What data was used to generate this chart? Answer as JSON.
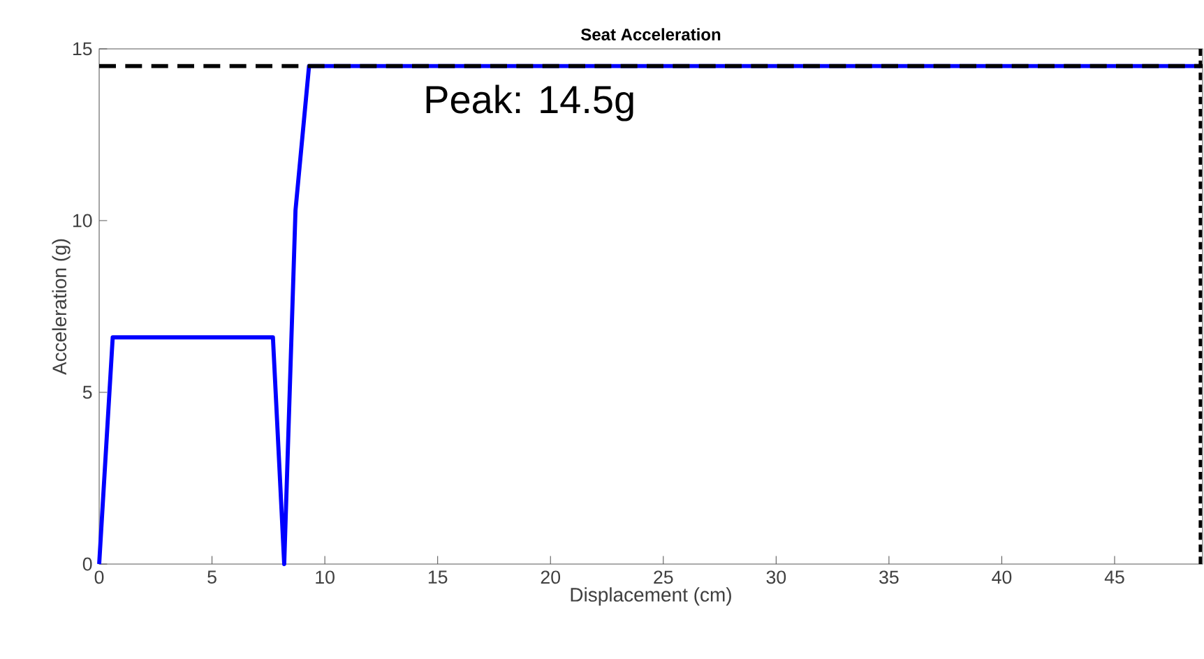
{
  "chart_data": {
    "type": "line",
    "title": "Seat Acceleration",
    "xlabel": "Displacement (cm)",
    "ylabel": "Acceleration (g)",
    "x": [
      0,
      0.6,
      7.7,
      8.2,
      8.7,
      9.3,
      48.8
    ],
    "series": [
      {
        "color": "#0000ff",
        "values": [
          0,
          6.6,
          6.6,
          0,
          10.3,
          14.5,
          14.5
        ]
      }
    ],
    "xlim": [
      0,
      48.9
    ],
    "ylim": [
      0,
      15
    ],
    "xticks": [
      0,
      5,
      10,
      15,
      20,
      25,
      30,
      35,
      40,
      45
    ],
    "yticks": [
      0,
      5,
      10,
      15
    ],
    "ref_lines": [
      {
        "axis": "y",
        "value": 14.5,
        "color": "#000000",
        "line_style": "dashed"
      },
      {
        "axis": "x",
        "value": 48.8,
        "color": "#000000",
        "line_style": "dashed"
      }
    ],
    "annotations": [
      "Peak: 14.5g"
    ],
    "grid": false,
    "marker": "none",
    "line_style": "solid"
  }
}
